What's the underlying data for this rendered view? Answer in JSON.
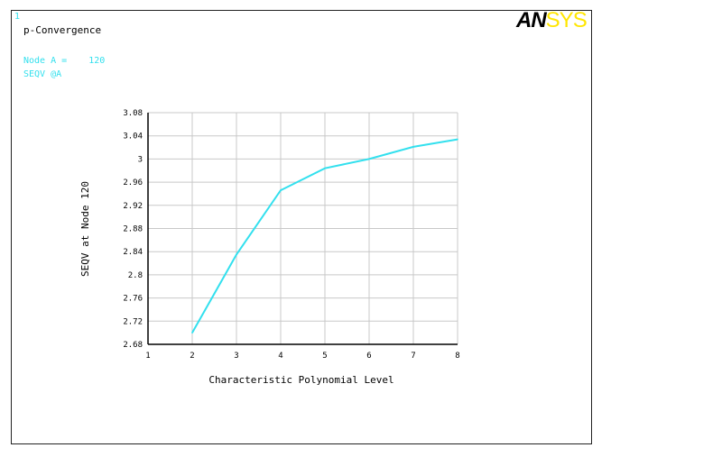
{
  "window_number": "1",
  "title": "p-Convergence",
  "node_label": "Node A =    120",
  "seqv_label": "SEQV @A",
  "logo": {
    "an": "AN",
    "sys": "SYS"
  },
  "colors": {
    "curve": "#33e0ee",
    "grid": "#c8c8c8",
    "axis": "#000000",
    "frame": "#222222"
  },
  "chart_data": {
    "type": "line",
    "xlabel": "Characteristic Polynomial Level",
    "ylabel": "SEQV at Node 120",
    "xlim": [
      1,
      8
    ],
    "ylim": [
      2.68,
      3.08
    ],
    "xticks": [
      "1",
      "2",
      "3",
      "4",
      "5",
      "6",
      "7",
      "8"
    ],
    "yticks": [
      "2.68",
      "2.72",
      "2.76",
      "2.8",
      "2.84",
      "2.88",
      "2.92",
      "2.96",
      "3",
      "3.04",
      "3.08"
    ],
    "grid": true,
    "series": [
      {
        "x": [
          2,
          3,
          4,
          5,
          6,
          7,
          8
        ],
        "values": [
          2.7,
          2.835,
          2.946,
          2.984,
          3.0,
          3.021,
          3.034
        ]
      }
    ]
  }
}
